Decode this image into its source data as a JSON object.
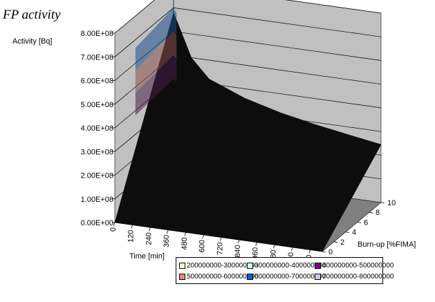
{
  "chart_data": {
    "type": "surface",
    "title": "FP activity",
    "zlabel": "Activity [Bq]",
    "xlabel": "Time [min]",
    "ylabel": "Burn-up [%FIMA]",
    "z_ticks": [
      "0.00E+00",
      "1.00E+08",
      "2.00E+08",
      "3.00E+08",
      "4.00E+08",
      "5.00E+08",
      "6.00E+08",
      "7.00E+08",
      "8.00E+08"
    ],
    "zlim": [
      0,
      800000000
    ],
    "x_ticks": [
      "0",
      "120",
      "240",
      "360",
      "480",
      "600",
      "720",
      "840",
      "960",
      "1080",
      "1200",
      "1320"
    ],
    "xlim": [
      0,
      1400
    ],
    "y_ticks": [
      "0",
      "2",
      "4",
      "6",
      "8",
      "10"
    ],
    "ylim": [
      0,
      10
    ],
    "surface_samples": [
      {
        "time": 0,
        "burnup": 10,
        "activity": 680000000
      },
      {
        "time": 120,
        "burnup": 10,
        "activity": 500000000
      },
      {
        "time": 240,
        "burnup": 10,
        "activity": 420000000
      },
      {
        "time": 480,
        "burnup": 10,
        "activity": 360000000
      },
      {
        "time": 720,
        "burnup": 10,
        "activity": 320000000
      },
      {
        "time": 960,
        "burnup": 10,
        "activity": 290000000
      },
      {
        "time": 1200,
        "burnup": 10,
        "activity": 265000000
      },
      {
        "time": 1400,
        "burnup": 10,
        "activity": 245000000
      },
      {
        "time": 0,
        "burnup": 0,
        "activity": 0
      },
      {
        "time": 1400,
        "burnup": 0,
        "activity": 0
      }
    ],
    "legend": [
      {
        "label": "200000000-300000000",
        "color": "#ffffcc"
      },
      {
        "label": "300000000-400000000",
        "color": "#ccffff"
      },
      {
        "label": "400000000-500000000",
        "color": "#800080"
      },
      {
        "label": "500000000-600000000",
        "color": "#ff8080"
      },
      {
        "label": "600000000-700000000",
        "color": "#0066cc"
      },
      {
        "label": "700000000-800000000",
        "color": "#ccccff"
      }
    ],
    "colors": {
      "wall": "#c0c0c0",
      "floor": "#808080",
      "surface": "#0d0d0d"
    }
  }
}
